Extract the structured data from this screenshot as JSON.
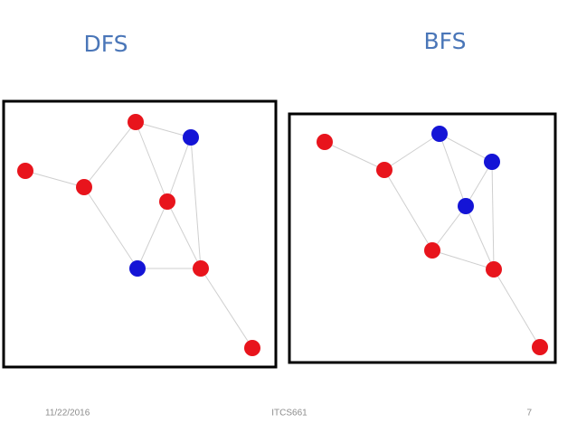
{
  "slide": {
    "left_title": "DFS",
    "right_title": "BFS"
  },
  "footer": {
    "date": "11/22/2016",
    "course": "ITCS661",
    "page": "7"
  }
}
